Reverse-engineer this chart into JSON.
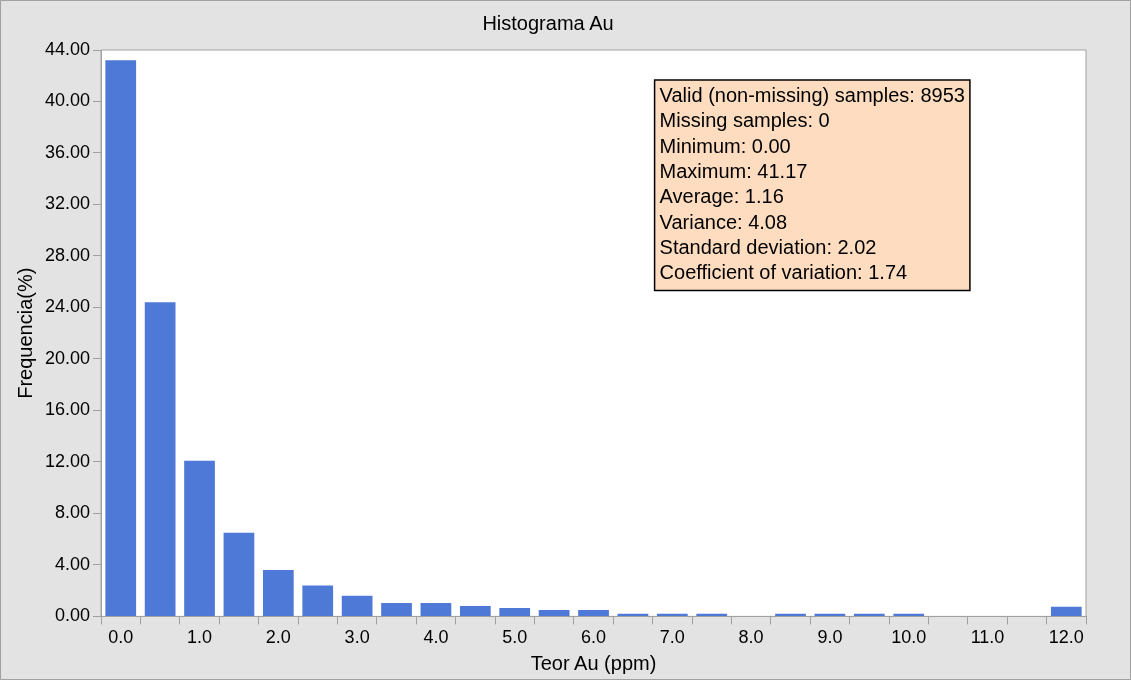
{
  "chart_data": {
    "type": "bar",
    "title": "Histograma Au",
    "xlabel": "Teor Au (ppm)",
    "ylabel": "Frequencia(%)",
    "categories": [
      "0.0",
      null,
      "1.0",
      null,
      "2.0",
      null,
      "3.0",
      null,
      "4.0",
      null,
      "5.0",
      null,
      "6.0",
      null,
      "7.0",
      null,
      "8.0",
      null,
      "9.0",
      null,
      "10.0",
      null,
      "11.0",
      null,
      "12.0"
    ],
    "values": [
      43.2,
      24.4,
      12.1,
      6.5,
      3.6,
      2.4,
      1.6,
      1.05,
      1.05,
      0.8,
      0.65,
      0.5,
      0.5,
      0.2,
      0.2,
      0.2,
      0,
      0.2,
      0.2,
      0.2,
      0.2,
      0,
      0,
      0,
      0.75
    ],
    "color": "#4f79d6",
    "ylim": [
      0,
      44
    ],
    "yticks": [
      {
        "value": 0,
        "label": "0.00"
      },
      {
        "value": 4,
        "label": "4.00"
      },
      {
        "value": 8,
        "label": "8.00"
      },
      {
        "value": 12,
        "label": "12.00"
      },
      {
        "value": 16,
        "label": "16.00"
      },
      {
        "value": 20,
        "label": "20.00"
      },
      {
        "value": 24,
        "label": "24.00"
      },
      {
        "value": 28,
        "label": "28.00"
      },
      {
        "value": 32,
        "label": "32.00"
      },
      {
        "value": 36,
        "label": "36.00"
      },
      {
        "value": 40,
        "label": "40.00"
      },
      {
        "value": 44,
        "label": "44.00"
      }
    ],
    "annotations": [
      "Valid (non-missing) samples: 8953",
      "Missing samples: 0",
      "Minimum: 0.00",
      "Maximum: 41.17",
      "Average: 1.16",
      "Variance: 4.08",
      "Standard deviation: 2.02",
      "Coefficient of variation: 1.74"
    ]
  }
}
